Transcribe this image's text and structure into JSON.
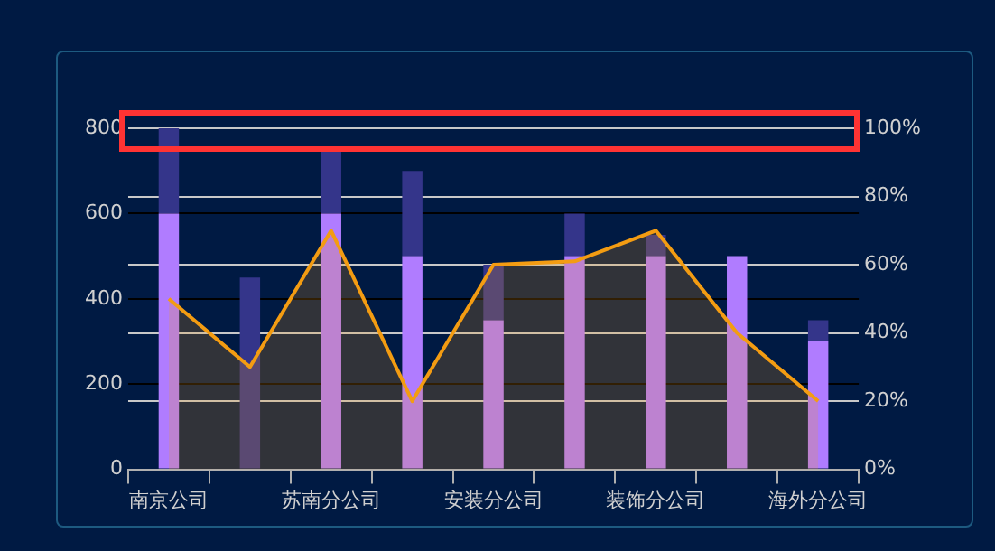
{
  "chart_data": {
    "type": "bar",
    "categories": [
      "南京公司",
      null,
      "苏南分公司",
      null,
      "安装分公司",
      null,
      "装饰分公司",
      null,
      "海外分公司"
    ],
    "series": [
      {
        "type": "bar",
        "color": "#b07cff",
        "values": [
          600,
          null,
          600,
          500,
          350,
          500,
          500,
          500,
          300
        ]
      },
      {
        "type": "bar",
        "color": "#34358a",
        "values": [
          200,
          450,
          150,
          200,
          130,
          100,
          50,
          null,
          50
        ]
      },
      {
        "type": "area",
        "color": "#f39c12",
        "axis": "y2",
        "values": [
          50,
          30,
          70,
          20,
          60,
          61,
          70,
          40,
          20
        ]
      }
    ],
    "ylim": [
      0,
      800
    ],
    "yticks": [
      0,
      200,
      400,
      600,
      800
    ],
    "y2lim": [
      0,
      100
    ],
    "y2ticks": [
      {
        "value": 0,
        "label": "0%"
      },
      {
        "value": 20,
        "label": "20%"
      },
      {
        "value": 40,
        "label": "40%"
      },
      {
        "value": 60,
        "label": "60%"
      },
      {
        "value": 80,
        "label": "80%"
      },
      {
        "value": 100,
        "label": "100%"
      }
    ],
    "stacked": true,
    "grid": true,
    "legend": false
  }
}
